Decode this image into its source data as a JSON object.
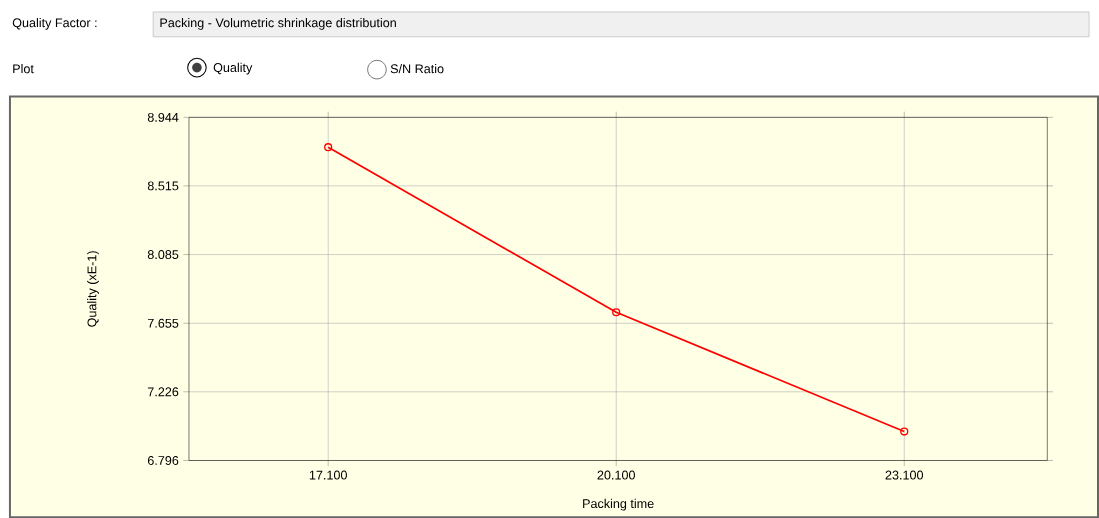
{
  "chart_data": {
    "type": "line",
    "xlabel": "Packing time",
    "ylabel": "Quality (xE-1)",
    "annotations": [
      "Quality Factor :",
      "Packing - Volumetric shrinkage distribution",
      "Plot",
      "Quality",
      "S/N Ratio"
    ],
    "x": [
      17.1,
      20.1,
      23.1
    ],
    "series": [
      {
        "color": "#ff0000",
        "values": [
          8.757,
          7.724,
          6.977
        ]
      }
    ],
    "xlim": [
      15.65,
      24.59
    ],
    "ylim": [
      6.796,
      8.944
    ],
    "xticks": [
      {
        "value": 17.1,
        "label": "17.100"
      },
      {
        "value": 20.1,
        "label": "20.100"
      },
      {
        "value": 23.1,
        "label": "23.100"
      }
    ],
    "yticks": [
      6.796,
      7.226,
      7.655,
      8.085,
      8.515,
      8.944
    ],
    "grid": true,
    "marker": "circle",
    "line_style": "solid"
  }
}
